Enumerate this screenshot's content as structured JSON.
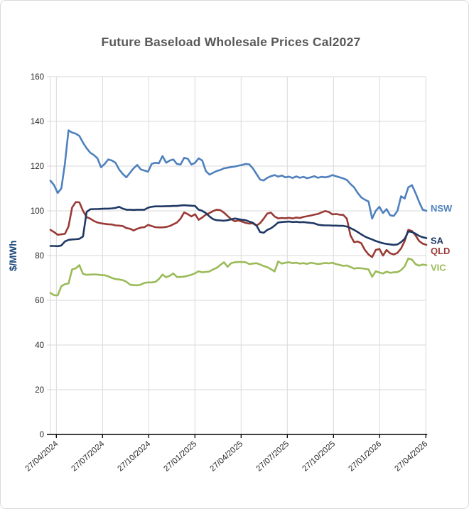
{
  "window": {
    "title": "Future Baseload Wholesale Prices Cal2027"
  },
  "chart_data": {
    "type": "line",
    "title": "Future Baseload Wholesale Prices Cal2027",
    "xlabel": "",
    "ylabel": "$/MWh",
    "ylim": [
      0,
      160
    ],
    "ytick_step": 20,
    "ytick_labels": [
      "0",
      "20",
      "40",
      "60",
      "80",
      "100",
      "120",
      "140",
      "160"
    ],
    "x_tick_labels": [
      "27/04/2024",
      "27/07/2024",
      "27/10/2024",
      "27/01/2025",
      "27/04/2025",
      "27/07/2025",
      "27/10/2025",
      "27/01/2026",
      "27/04/2026"
    ],
    "grid": true,
    "legend_position": "right-end-of-line-labels",
    "x_unit": "weekly observations from 27/04/2024 to 27/04/2026",
    "series": [
      {
        "name": "NSW",
        "color": "#4F81BD",
        "label_dy": -3,
        "values": [
          113.5,
          111.5,
          108,
          110,
          121,
          136,
          135,
          134.5,
          133.5,
          130.5,
          128,
          126,
          125,
          123.5,
          119.5,
          121,
          123,
          122.5,
          121.5,
          118.5,
          116.5,
          115,
          117,
          119,
          120.5,
          118.5,
          118,
          117.5,
          121,
          121.5,
          121.3,
          124.5,
          121.5,
          122.5,
          123,
          121,
          120.7,
          123.7,
          123.3,
          120.7,
          121.5,
          123.5,
          122.5,
          117.8,
          116.2,
          117,
          117.8,
          118.3,
          119,
          119.3,
          119.6,
          119.8,
          120.2,
          120.5,
          121,
          120.8,
          119,
          116.5,
          114,
          113.6,
          114.8,
          115.5,
          116,
          115.3,
          115.8,
          115,
          115.3,
          114.7,
          115.4,
          114.8,
          115.2,
          114.6,
          115,
          115.5,
          114.8,
          115.2,
          115,
          115.3,
          116,
          115.5,
          115,
          114.5,
          113.8,
          112,
          110.5,
          108,
          106,
          105,
          104.2,
          96.5,
          100,
          101.8,
          99,
          100.8,
          98,
          97.7,
          100,
          106.5,
          105.5,
          110.5,
          111.5,
          108,
          104,
          100.5,
          100
        ]
      },
      {
        "name": "SA",
        "color": "#1F3864",
        "label_dy": 4,
        "values": [
          84.3,
          84.3,
          84.2,
          84.5,
          86.3,
          87,
          87.2,
          87.3,
          87.5,
          88.5,
          99.5,
          100.7,
          100.8,
          100.8,
          100.9,
          101,
          101,
          101.1,
          101.3,
          101.8,
          101,
          100.5,
          100.5,
          100.4,
          100.5,
          100.5,
          100.5,
          101.4,
          101.8,
          102,
          102,
          102,
          102.1,
          102.1,
          102.2,
          102.2,
          102.4,
          102.5,
          102.4,
          102.3,
          102.2,
          100.5,
          100,
          99,
          97.5,
          96.3,
          95.8,
          95.7,
          95.6,
          95.8,
          96.2,
          96.6,
          96.3,
          96,
          95.8,
          95.2,
          94.7,
          93.5,
          90.5,
          90.2,
          91.5,
          92.2,
          93.4,
          94.8,
          95,
          95.1,
          95.2,
          95,
          95.1,
          94.9,
          95,
          94.8,
          94.6,
          94.4,
          93.8,
          93.6,
          93.5,
          93.5,
          93.4,
          93.4,
          93.3,
          93.3,
          93,
          92.3,
          91.5,
          90.5,
          89.5,
          88.5,
          87.8,
          87.2,
          86.5,
          86,
          85.5,
          85.2,
          85,
          84.8,
          85,
          86,
          87.5,
          90.8,
          90.5,
          89.8,
          88.8,
          88.2,
          87.8
        ]
      },
      {
        "name": "QLD",
        "color": "#9A3A36",
        "label_dy": 9,
        "values": [
          91.5,
          90.5,
          89.3,
          89.5,
          89.7,
          93,
          101.5,
          103.9,
          103.8,
          100,
          97.2,
          96.5,
          95.5,
          94.8,
          94.4,
          94.2,
          94,
          93.9,
          93.5,
          93.4,
          93.2,
          92.3,
          92,
          91.2,
          92,
          92.5,
          92.7,
          93.7,
          93.2,
          92.7,
          92.6,
          92.6,
          92.8,
          93.2,
          94,
          94.8,
          96.5,
          99.3,
          98.5,
          97.5,
          98.5,
          96,
          97,
          98.3,
          99,
          99.9,
          100.5,
          100.3,
          99.2,
          97.7,
          96.3,
          95.3,
          95.7,
          95.2,
          94.6,
          94.3,
          94.4,
          93.4,
          94.5,
          96.5,
          98.8,
          99.2,
          97.5,
          96.6,
          96.8,
          96.7,
          96.9,
          96.6,
          97,
          96.8,
          97.3,
          97.6,
          97.9,
          98.3,
          98.6,
          99.3,
          99.9,
          99.5,
          98.4,
          98.6,
          98.3,
          98.2,
          96.5,
          89,
          86,
          86.3,
          85.5,
          82.5,
          80.5,
          79.3,
          82.5,
          83,
          80,
          82.5,
          81,
          80.5,
          81.2,
          83.2,
          86.5,
          91.5,
          91,
          89,
          86.5,
          85.3,
          84.8
        ]
      },
      {
        "name": "VIC",
        "color": "#9BBB59",
        "label_dy": 4,
        "values": [
          63.3,
          62.3,
          62.2,
          66.3,
          67.2,
          67.5,
          73.8,
          74.3,
          75.7,
          71.8,
          71.4,
          71.5,
          71.6,
          71.5,
          71.3,
          71.2,
          70.7,
          70,
          69.5,
          69.3,
          69,
          68.3,
          67,
          66.8,
          66.7,
          67,
          67.8,
          68,
          68,
          68.2,
          69.5,
          71.5,
          70.3,
          71,
          72,
          70.4,
          70.4,
          70.6,
          71,
          71.4,
          72.1,
          73,
          72.5,
          72.7,
          72.9,
          73.8,
          74.5,
          75.8,
          77,
          75,
          76.6,
          77,
          77.1,
          77.1,
          77,
          76.2,
          76.4,
          76.6,
          76,
          75.3,
          74.8,
          73.9,
          72.9,
          77.4,
          76.4,
          76.8,
          77,
          76.6,
          76.8,
          76.4,
          76.6,
          76.3,
          76.8,
          76.5,
          76.2,
          76.4,
          76.7,
          76.5,
          76.8,
          76.2,
          75.8,
          75.4,
          75.6,
          74.9,
          74.2,
          74.4,
          74.3,
          74.1,
          73.8,
          70.5,
          73,
          72.4,
          72,
          72.8,
          72.3,
          72.5,
          72.6,
          73.5,
          75.2,
          78.7,
          78.2,
          76.2,
          75.5,
          76,
          75.7
        ]
      }
    ],
    "draw_order": [
      "QLD",
      "SA",
      "VIC",
      "NSW"
    ],
    "colors": {
      "gridline": "#D9D9D9",
      "axis_x": "#000000",
      "axis_y": "#D9D9D9",
      "title": "#595959",
      "tick_label": "#262626",
      "ylabel": "#1F497D",
      "frame_border": "#D9D9D9"
    }
  }
}
